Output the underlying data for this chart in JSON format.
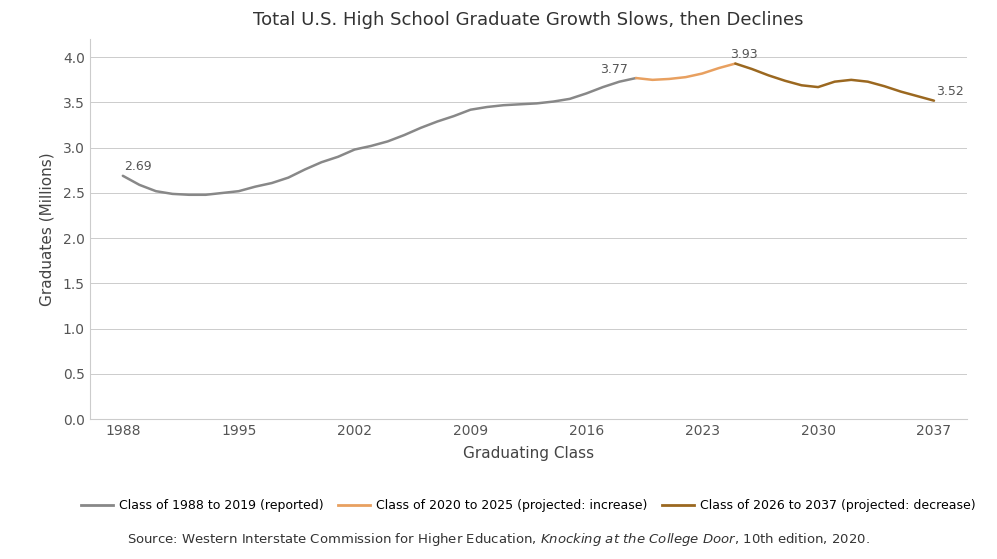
{
  "title": "Total U.S. High School Graduate Growth Slows, then Declines",
  "xlabel": "Graduating Class",
  "ylabel": "Graduates (Millions)",
  "xlim": [
    1986,
    2039
  ],
  "ylim": [
    0.0,
    4.2
  ],
  "yticks": [
    0.0,
    0.5,
    1.0,
    1.5,
    2.0,
    2.5,
    3.0,
    3.5,
    4.0
  ],
  "xticks": [
    1988,
    1995,
    2002,
    2009,
    2016,
    2023,
    2030,
    2037
  ],
  "segment1_color": "#888888",
  "segment2_color": "#E8A060",
  "segment3_color": "#9B6820",
  "segment1_label": "Class of 1988 to 2019 (reported)",
  "segment2_label": "Class of 2020 to 2025 (projected: increase)",
  "segment3_label": "Class of 2026 to 2037 (projected: decrease)",
  "ann_1988_x": 1988,
  "ann_1988_y": 2.69,
  "ann_1988_text": "2.69",
  "ann_2019_x": 2019,
  "ann_2019_y": 3.77,
  "ann_2019_text": "3.77",
  "ann_2025_x": 2025,
  "ann_2025_y": 3.93,
  "ann_2025_text": "3.93",
  "ann_2037_x": 2037,
  "ann_2037_y": 3.52,
  "ann_2037_text": "3.52",
  "segment1_x": [
    1988,
    1989,
    1990,
    1991,
    1992,
    1993,
    1994,
    1995,
    1996,
    1997,
    1998,
    1999,
    2000,
    2001,
    2002,
    2003,
    2004,
    2005,
    2006,
    2007,
    2008,
    2009,
    2010,
    2011,
    2012,
    2013,
    2014,
    2015,
    2016,
    2017,
    2018,
    2019
  ],
  "segment1_y": [
    2.69,
    2.59,
    2.52,
    2.49,
    2.48,
    2.48,
    2.5,
    2.52,
    2.57,
    2.61,
    2.67,
    2.76,
    2.84,
    2.9,
    2.98,
    3.02,
    3.07,
    3.14,
    3.22,
    3.29,
    3.35,
    3.42,
    3.45,
    3.47,
    3.48,
    3.49,
    3.51,
    3.54,
    3.6,
    3.67,
    3.73,
    3.77
  ],
  "segment2_x": [
    2019,
    2020,
    2021,
    2022,
    2023,
    2024,
    2025
  ],
  "segment2_y": [
    3.77,
    3.75,
    3.76,
    3.78,
    3.82,
    3.88,
    3.93
  ],
  "segment3_x": [
    2025,
    2026,
    2027,
    2028,
    2029,
    2030,
    2031,
    2032,
    2033,
    2034,
    2035,
    2036,
    2037
  ],
  "segment3_y": [
    3.93,
    3.87,
    3.8,
    3.74,
    3.69,
    3.67,
    3.73,
    3.75,
    3.73,
    3.68,
    3.62,
    3.57,
    3.52
  ],
  "bg_color": "#ffffff",
  "grid_color": "#cccccc",
  "text_color": "#555555",
  "spine_color": "#cccccc"
}
